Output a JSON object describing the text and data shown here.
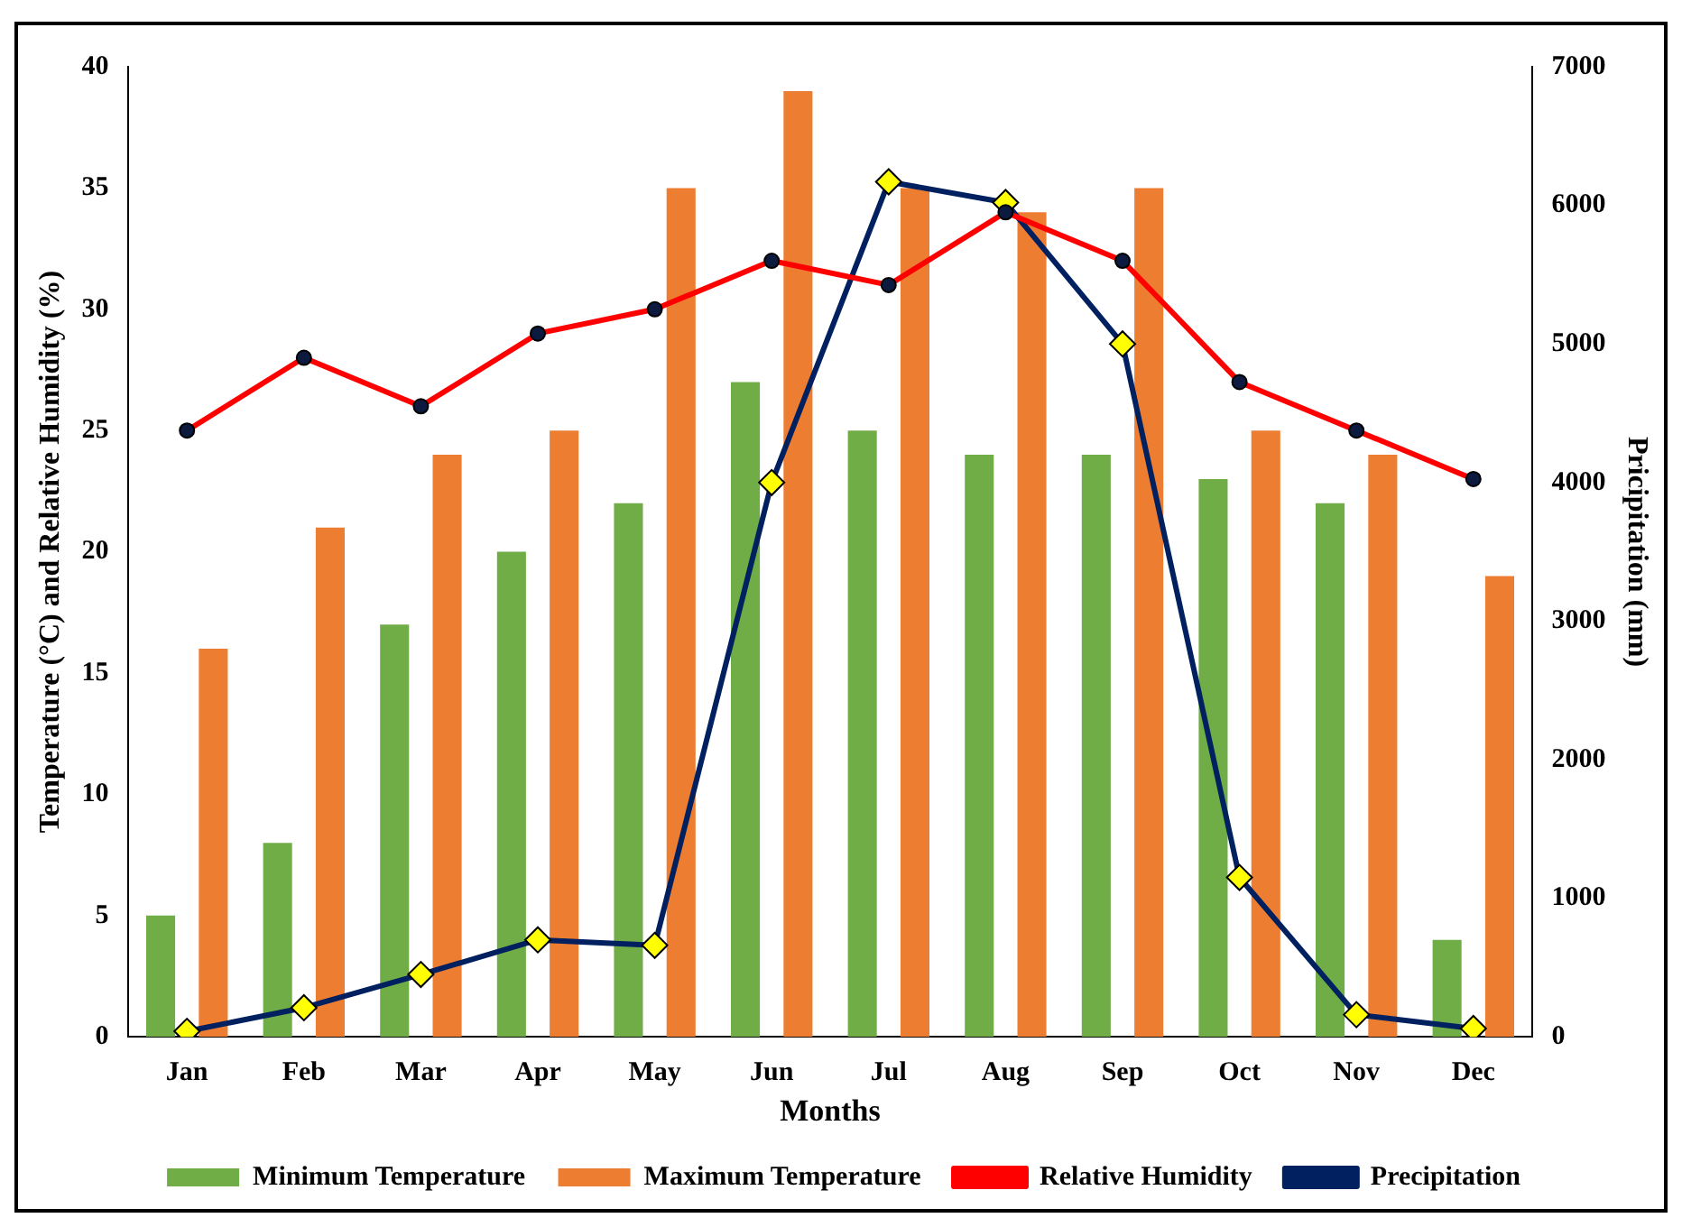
{
  "chart_data": {
    "type": "bar",
    "xlabel": "Months",
    "ylabel": "Temperature (°C) and Relative Humidity (%)",
    "y2label": "Pricipitation (mm)",
    "categories": [
      "Jan",
      "Feb",
      "Mar",
      "Apr",
      "May",
      "Jun",
      "Jul",
      "Aug",
      "Sep",
      "Oct",
      "Nov",
      "Dec"
    ],
    "series": [
      {
        "name": "Minimum Temperature",
        "color": "#70ad47",
        "values": [
          5,
          8,
          17,
          20,
          22,
          27,
          25,
          24,
          24,
          23,
          22,
          4
        ]
      },
      {
        "name": "Maximum Temperature",
        "color": "#ed7d31",
        "values": [
          16,
          21,
          24,
          25,
          35,
          39,
          35,
          34,
          35,
          25,
          24,
          19
        ]
      },
      {
        "name": "Relative Humidity",
        "type": "line",
        "color": "#ff0000",
        "marker": "circle",
        "values": [
          25,
          28,
          26,
          29,
          30,
          32,
          31,
          34,
          32,
          27,
          25,
          23
        ]
      },
      {
        "name": "Precipitation",
        "type": "line",
        "color": "#002060",
        "marker": "diamond",
        "axis": "y2",
        "values": [
          40,
          210,
          450,
          700,
          660,
          4000,
          6170,
          6020,
          5000,
          1150,
          160,
          60
        ]
      }
    ],
    "ylim": [
      0,
      40
    ],
    "yticks": [
      0,
      5,
      10,
      15,
      20,
      25,
      30,
      35,
      40
    ],
    "y2lim": [
      0,
      7000
    ],
    "y2ticks": [
      0,
      1000,
      2000,
      3000,
      4000,
      5000,
      6000,
      7000
    ],
    "grid": false,
    "legend": "bottom"
  }
}
